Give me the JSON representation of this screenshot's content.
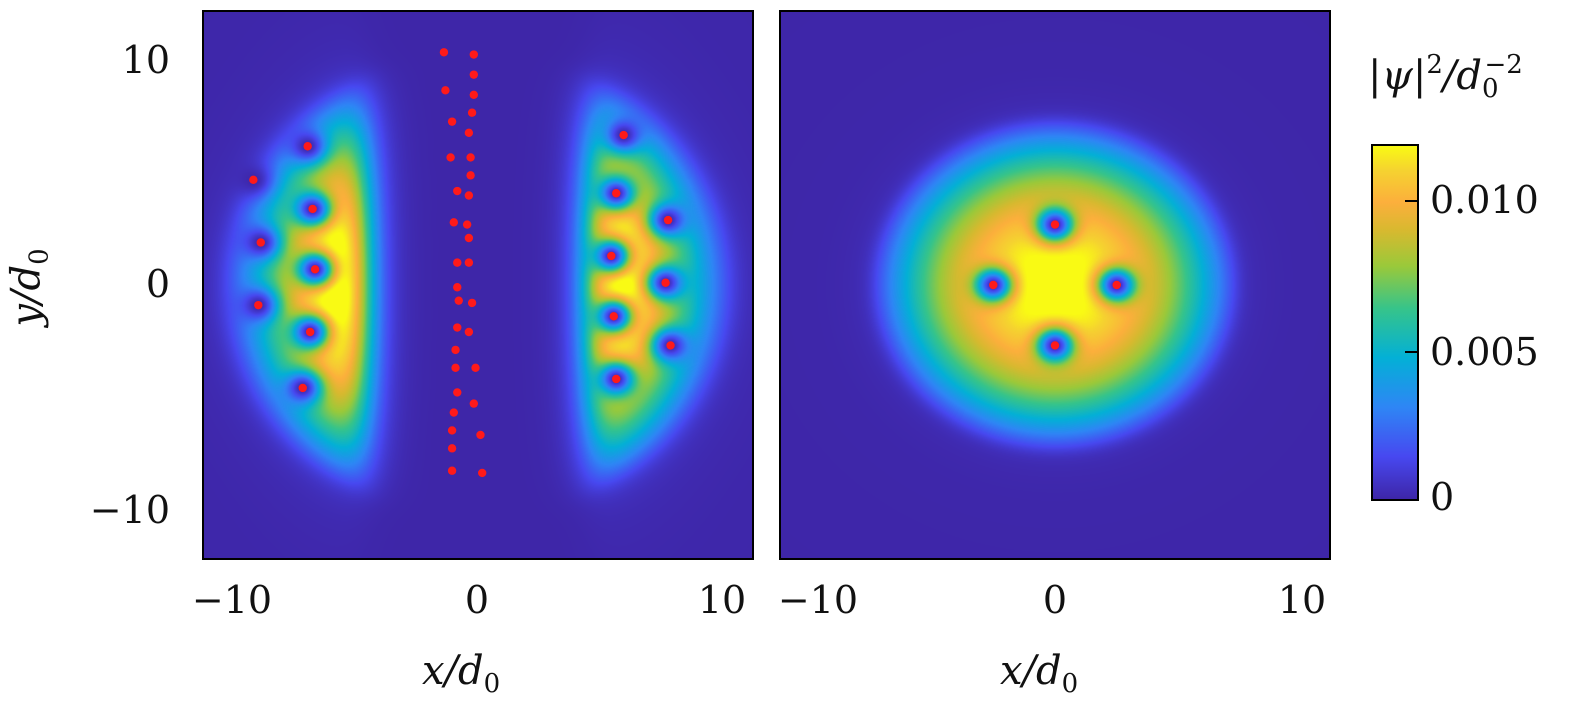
{
  "chart_data": {
    "type": "heatmap",
    "colormap": "parula",
    "colorbar": {
      "label": "|ψ|²/d₀⁻²",
      "label_main": "|ψ|",
      "label_sup1": "2",
      "label_mid": "/d",
      "label_sub": "0",
      "label_sup2": "−2",
      "ticks": [
        0,
        0.005,
        0.01
      ],
      "tick_labels": [
        "0",
        "0.005",
        "0.010"
      ],
      "clim": [
        0,
        0.0118
      ]
    },
    "marker_color": "#ff1a1a",
    "panels": [
      {
        "xlabel": "x/d0",
        "xlabel_main": "x/d",
        "xlabel_sub": "0",
        "ylabel": "y/d0",
        "ylabel_main": "y/d",
        "ylabel_sub": "0",
        "xlim": [
          -11.1,
          11.1
        ],
        "ylim": [
          -12.2,
          12.2
        ],
        "xticks": [
          -10,
          0,
          10
        ],
        "xtick_labels": [
          "−10",
          "0",
          "10"
        ],
        "yticks": [
          10,
          0,
          -10
        ],
        "ytick_labels": [
          "10",
          "0",
          "−10"
        ],
        "density_peak": 0.0118,
        "description_of_field": "two crescent-shaped condensate lobes separated by a vortex sheet",
        "vortices": [
          [
            -6.9,
            6.2
          ],
          [
            -9.1,
            4.7
          ],
          [
            -6.7,
            3.4
          ],
          [
            -8.8,
            1.9
          ],
          [
            -6.6,
            0.7
          ],
          [
            -8.9,
            -0.9
          ],
          [
            -6.8,
            -2.1
          ],
          [
            -7.1,
            -4.6
          ],
          [
            5.9,
            6.7
          ],
          [
            5.6,
            4.1
          ],
          [
            7.7,
            2.9
          ],
          [
            5.4,
            1.3
          ],
          [
            7.6,
            0.1
          ],
          [
            5.5,
            -1.4
          ],
          [
            7.8,
            -2.7
          ],
          [
            5.6,
            -4.2
          ],
          [
            -1.38,
            10.4
          ],
          [
            -0.17,
            10.3
          ],
          [
            -0.17,
            9.4
          ],
          [
            -1.32,
            8.7
          ],
          [
            -0.17,
            8.5
          ],
          [
            -0.24,
            7.7
          ],
          [
            -1.05,
            7.3
          ],
          [
            -0.37,
            6.8
          ],
          [
            -1.11,
            5.7
          ],
          [
            -0.3,
            5.7
          ],
          [
            -0.3,
            4.9
          ],
          [
            -0.84,
            4.2
          ],
          [
            -0.37,
            4.0
          ],
          [
            -0.98,
            2.8
          ],
          [
            -0.44,
            2.7
          ],
          [
            -0.37,
            2.1
          ],
          [
            -0.84,
            1.0
          ],
          [
            -0.37,
            1.0
          ],
          [
            -0.84,
            -0.1
          ],
          [
            -0.78,
            -0.7
          ],
          [
            -0.24,
            -0.8
          ],
          [
            -0.84,
            -1.9
          ],
          [
            -0.37,
            -2.1
          ],
          [
            -0.91,
            -2.9
          ],
          [
            -0.91,
            -3.7
          ],
          [
            -0.1,
            -3.7
          ],
          [
            -0.84,
            -4.8
          ],
          [
            -0.17,
            -5.3
          ],
          [
            -0.98,
            -5.7
          ],
          [
            -1.05,
            -6.5
          ],
          [
            0.1,
            -6.7
          ],
          [
            -1.05,
            -7.3
          ],
          [
            -1.05,
            -8.3
          ],
          [
            0.17,
            -8.4
          ]
        ]
      },
      {
        "xlabel": "x/d0",
        "xlabel_main": "x/d",
        "xlabel_sub": "0",
        "xlim": [
          -11.1,
          11.1
        ],
        "ylim": [
          -12.2,
          12.2
        ],
        "xticks": [
          -10,
          0,
          10
        ],
        "xtick_labels": [
          "−10",
          "0",
          "10"
        ],
        "density_peak": 0.0118,
        "description_of_field": "single disk-shaped condensate with four vortices",
        "vortices": [
          [
            0,
            2.7
          ],
          [
            -2.5,
            0
          ],
          [
            2.5,
            0
          ],
          [
            0,
            -2.7
          ]
        ]
      }
    ]
  }
}
